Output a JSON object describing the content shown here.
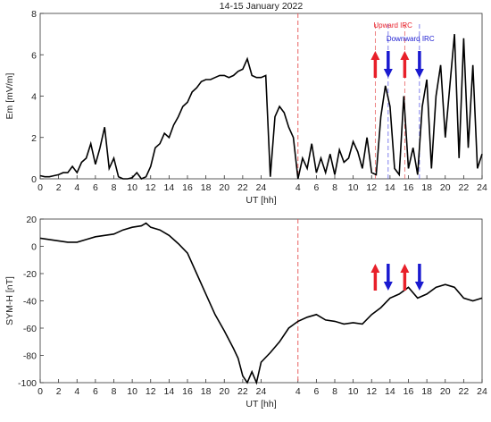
{
  "chart_data": [
    {
      "type": "line",
      "title": "14-15 January 2022",
      "x_label": "UT [hh]",
      "y_label": "Em [mV/m]",
      "color": "#000000",
      "xlim": [
        0,
        48
      ],
      "ylim": [
        0,
        8
      ],
      "xticks": [
        0,
        2,
        4,
        6,
        8,
        10,
        12,
        14,
        16,
        18,
        20,
        22,
        24,
        {
          "value": 28,
          "label": "4"
        },
        {
          "value": 30,
          "label": "6"
        },
        {
          "value": 32,
          "label": "8"
        },
        {
          "value": 34,
          "label": "10"
        },
        {
          "value": 36,
          "label": "12"
        },
        {
          "value": 38,
          "label": "14"
        },
        {
          "value": 40,
          "label": "16"
        },
        {
          "value": 42,
          "label": "18"
        },
        {
          "value": 44,
          "label": "20"
        },
        {
          "value": 46,
          "label": "22"
        },
        {
          "value": 48,
          "label": "24"
        }
      ],
      "yticks": [
        0,
        2,
        4,
        6,
        8
      ],
      "annotations": [
        {
          "text": "Upward IRC",
          "color": "#e8202a"
        },
        {
          "text": "Downward IRC",
          "color": "#1a1ad0"
        }
      ],
      "marker_x": 28,
      "upward_irc": [
        36.4,
        39.6
      ],
      "downward_irc": [
        37.8,
        41.2
      ],
      "event_lines": true,
      "x": [
        0,
        0.5,
        1,
        1.5,
        2,
        2.5,
        3,
        3.5,
        4,
        4.5,
        5,
        5.5,
        6,
        6.5,
        7,
        7.5,
        8,
        8.5,
        9,
        9.5,
        10,
        10.5,
        11,
        11.5,
        12,
        12.5,
        13,
        13.5,
        14,
        14.5,
        15,
        15.5,
        16,
        16.5,
        17,
        17.5,
        18,
        18.5,
        19,
        19.5,
        20,
        20.5,
        21,
        21.5,
        22,
        22.5,
        23,
        23.5,
        24,
        24.5,
        25,
        25.5,
        26,
        26.5,
        27,
        27.5,
        28,
        28.5,
        29,
        29.5,
        30,
        30.5,
        31,
        31.5,
        32,
        32.5,
        33,
        33.5,
        34,
        34.5,
        35,
        35.5,
        36,
        36.5,
        37,
        37.5,
        38,
        38.5,
        39,
        39.5,
        40,
        40.5,
        41,
        41.5,
        42,
        42.5,
        43,
        43.5,
        44,
        44.5,
        45,
        45.5,
        46,
        46.5,
        47,
        47.5,
        48
      ],
      "values": [
        0.15,
        0.1,
        0.1,
        0.15,
        0.2,
        0.3,
        0.3,
        0.6,
        0.3,
        0.8,
        1.0,
        1.7,
        0.7,
        1.5,
        2.5,
        0.5,
        1.0,
        0.1,
        0,
        0,
        0.05,
        0.3,
        0,
        0.1,
        0.6,
        1.5,
        1.7,
        2.2,
        2.0,
        2.6,
        3.0,
        3.5,
        3.7,
        4.2,
        4.4,
        4.7,
        4.8,
        4.8,
        4.9,
        5.0,
        5.0,
        4.9,
        5.0,
        5.2,
        5.3,
        5.8,
        5.0,
        4.9,
        4.9,
        5.0,
        0.1,
        3.0,
        3.5,
        3.2,
        2.5,
        2.0,
        0,
        1.0,
        0.5,
        1.7,
        0.3,
        1.0,
        0.3,
        1.2,
        0.2,
        1.4,
        0.8,
        1.0,
        1.8,
        1.3,
        0.5,
        2.0,
        0.3,
        0.2,
        3.0,
        4.5,
        3.5,
        0.5,
        0.2,
        4.0,
        0.5,
        1.5,
        0.2,
        3.5,
        4.8,
        0.5,
        4.0,
        5.5,
        2.0,
        4.5,
        7.0,
        1.0,
        6.8,
        1.5,
        5.5,
        0.5,
        1.2
      ]
    },
    {
      "type": "line",
      "x_label": "UT [hh]",
      "y_label": "SYM-H [nT]",
      "color": "#000000",
      "xlim": [
        0,
        48
      ],
      "ylim": [
        -100,
        20
      ],
      "xticks": [
        0,
        2,
        4,
        6,
        8,
        10,
        12,
        14,
        16,
        18,
        20,
        22,
        24,
        {
          "value": 28,
          "label": "4"
        },
        {
          "value": 30,
          "label": "6"
        },
        {
          "value": 32,
          "label": "8"
        },
        {
          "value": 34,
          "label": "10"
        },
        {
          "value": 36,
          "label": "12"
        },
        {
          "value": 38,
          "label": "14"
        },
        {
          "value": 40,
          "label": "16"
        },
        {
          "value": 42,
          "label": "18"
        },
        {
          "value": 44,
          "label": "20"
        },
        {
          "value": 46,
          "label": "22"
        },
        {
          "value": 48,
          "label": "24"
        }
      ],
      "yticks": [
        -100,
        -80,
        -60,
        -40,
        -20,
        0,
        20
      ],
      "marker_x": 28,
      "upward_irc": [
        36.4,
        39.6
      ],
      "downward_irc": [
        37.8,
        41.2
      ],
      "event_lines": false,
      "x": [
        0,
        1,
        2,
        3,
        4,
        5,
        6,
        7,
        8,
        9,
        10,
        11,
        11.5,
        12,
        13,
        14,
        15,
        16,
        17,
        18,
        19,
        20,
        21,
        21.5,
        22,
        22.5,
        23,
        23.5,
        24,
        25,
        26,
        27,
        28,
        29,
        30,
        31,
        32,
        33,
        34,
        35,
        36,
        37,
        38,
        39,
        40,
        41,
        42,
        43,
        44,
        45,
        46,
        47,
        48
      ],
      "values": [
        6,
        5,
        4,
        3,
        3,
        5,
        7,
        8,
        9,
        12,
        14,
        15,
        17,
        14,
        12,
        8,
        2,
        -5,
        -20,
        -35,
        -50,
        -62,
        -75,
        -82,
        -95,
        -100,
        -92,
        -100,
        -85,
        -78,
        -70,
        -60,
        -55,
        -52,
        -50,
        -54,
        -55,
        -57,
        -56,
        -57,
        -50,
        -45,
        -38,
        -35,
        -30,
        -38,
        -35,
        -30,
        -28,
        -30,
        -38,
        -40,
        -38
      ]
    }
  ]
}
